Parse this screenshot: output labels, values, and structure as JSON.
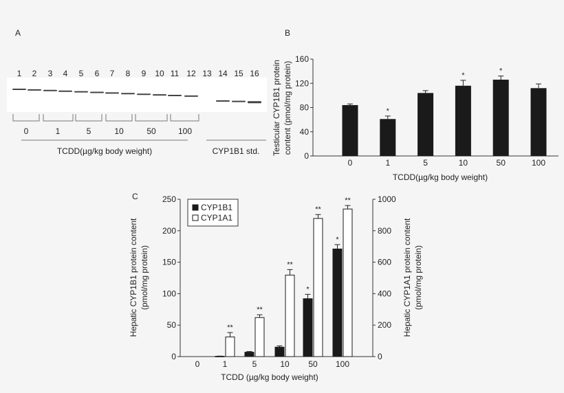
{
  "panel_a": {
    "label": "A",
    "lanes": [
      "1",
      "2",
      "3",
      "4",
      "5",
      "6",
      "7",
      "8",
      "9",
      "10",
      "11",
      "12",
      "13",
      "14",
      "15",
      "16"
    ],
    "groups": [
      "0",
      "1",
      "5",
      "10",
      "50",
      "100"
    ],
    "treatment_label": "TCDD(µg/kg body weight)",
    "standard_label": "CYP1B1 std."
  },
  "chart_data": [
    {
      "panel": "B",
      "type": "bar",
      "categories": [
        "0",
        "1",
        "5",
        "10",
        "50",
        "100"
      ],
      "values": [
        84,
        61,
        104,
        116,
        126,
        112
      ],
      "errors": [
        2,
        5,
        4,
        9,
        6,
        7
      ],
      "significance": [
        "",
        "*",
        "",
        "*",
        "*",
        ""
      ],
      "xlabel": "TCDD(µg/kg body weight)",
      "ylabel": [
        "Testicular CYP1B1 protein",
        "content (pmol/mg protein)"
      ],
      "ylim": [
        0,
        160
      ],
      "yticks": [
        "0",
        "40",
        "80",
        "120",
        "160"
      ],
      "bar_color": "#1a1a1a"
    },
    {
      "panel": "C",
      "type": "bar",
      "categories": [
        "0",
        "1",
        "5",
        "10",
        "50",
        "100"
      ],
      "series": [
        {
          "name": "CYP1B1",
          "axis": "left",
          "values": [
            0,
            0.5,
            7,
            15,
            92,
            171
          ],
          "errors": [
            0,
            0.3,
            1,
            2,
            7,
            7
          ],
          "significance": [
            "",
            "",
            "",
            "",
            "*",
            "*"
          ],
          "color": "#1a1a1a"
        },
        {
          "name": "CYP1A1",
          "axis": "right",
          "values": [
            0,
            125,
            248,
            518,
            878,
            938
          ],
          "errors": [
            0,
            28,
            18,
            35,
            25,
            22
          ],
          "significance": [
            "",
            "**",
            "**",
            "**",
            "**",
            "**"
          ],
          "color": "#ffffff"
        }
      ],
      "xlabel": "TCDD (µg/kg body weight)",
      "ylabel_left": [
        "Hepatic CYP1B1 protein content",
        "(pmol/mg protein)"
      ],
      "ylabel_right": [
        "Hepatic CYP1A1 protein content",
        "(pmol/mg protein)"
      ],
      "ylim_left": [
        0,
        250
      ],
      "ylim_right": [
        0,
        1000
      ],
      "yticks_left": [
        "0",
        "50",
        "100",
        "150",
        "200",
        "250"
      ],
      "yticks_right": [
        "0",
        "200",
        "400",
        "600",
        "800",
        "1000"
      ],
      "legend": "top-left"
    }
  ],
  "panel_b_label": "B",
  "panel_c_label": "C"
}
